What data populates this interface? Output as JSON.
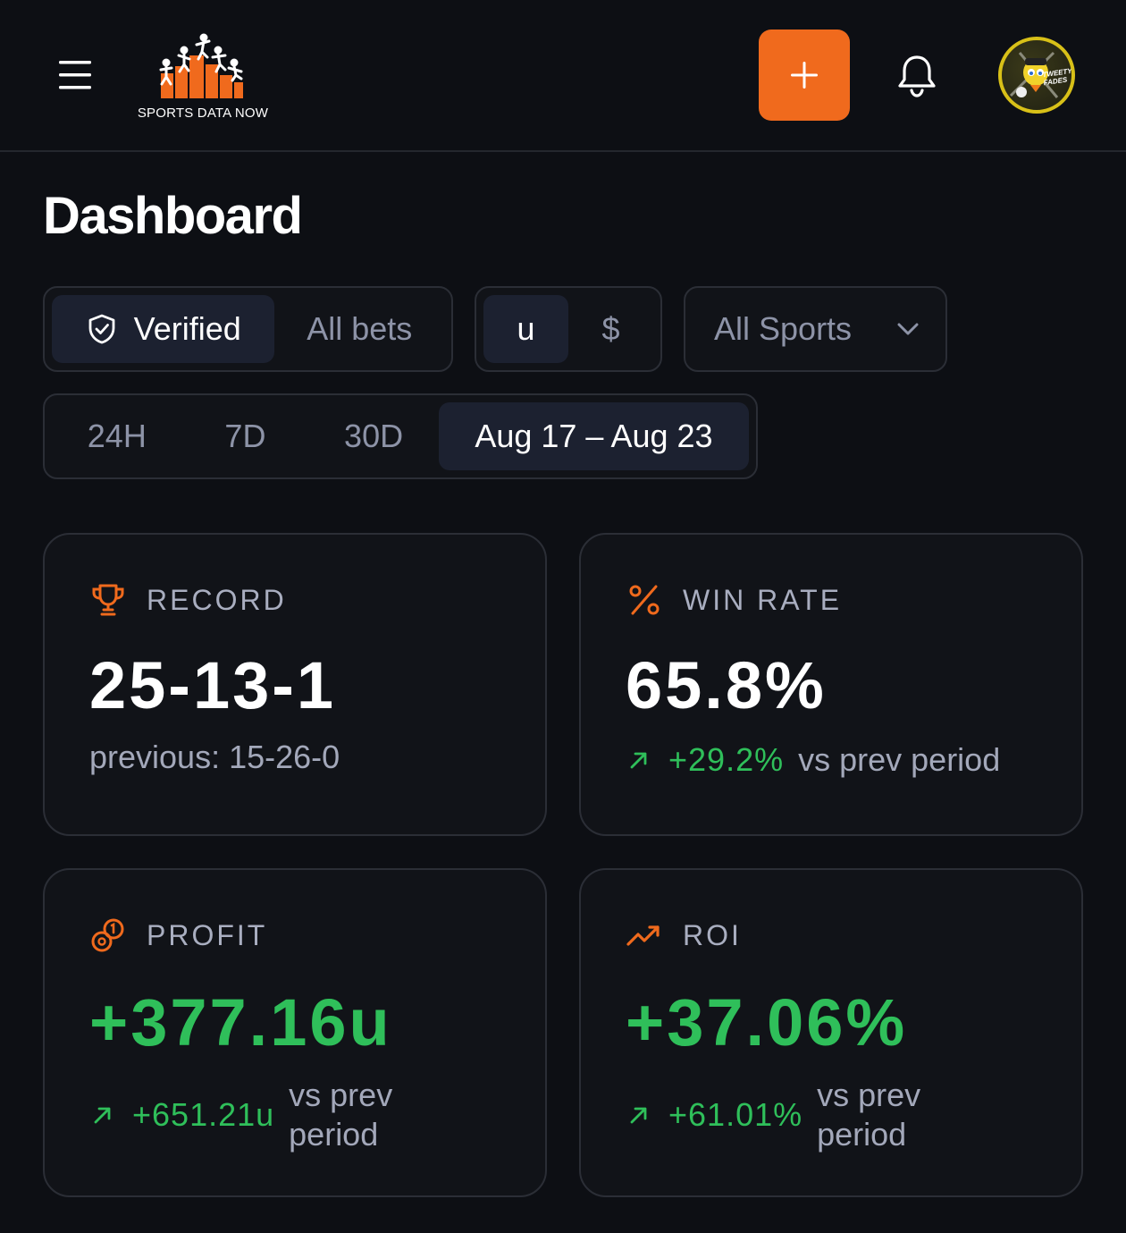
{
  "app": {
    "logo_text": "SPORTS DATA NOW",
    "avatar_text": "TWEETY FADES"
  },
  "icons": {
    "menu": "hamburger-menu-icon",
    "add": "plus-icon",
    "notifications": "bell-icon",
    "verified": "shield-check-icon",
    "dropdown": "chevron-down-icon",
    "record": "trophy-icon",
    "win_rate": "percent-icon",
    "profit": "coins-icon",
    "roi": "trending-up-icon",
    "delta": "arrow-up-right-icon"
  },
  "page": {
    "title": "Dashboard"
  },
  "filters": {
    "bet_filter": {
      "verified": "Verified",
      "all": "All bets",
      "selected": "Verified"
    },
    "unit_filter": {
      "units": "u",
      "dollars": "$",
      "selected": "u"
    },
    "sport_select": {
      "value": "All Sports"
    },
    "period": {
      "options": [
        "24H",
        "7D",
        "30D",
        "Aug 17 – Aug 23"
      ],
      "selected": "Aug 17 – Aug 23"
    }
  },
  "stats": {
    "record": {
      "label": "RECORD",
      "value": "25-13-1",
      "previous": "previous: 15-26-0"
    },
    "win_rate": {
      "label": "WIN RATE",
      "value": "65.8%",
      "delta": "+29.2%",
      "delta_text": "vs prev period"
    },
    "profit": {
      "label": "PROFIT",
      "value": "+377.16u",
      "delta": "+651.21u",
      "delta_text": "vs prev period"
    },
    "roi": {
      "label": "ROI",
      "value": "+37.06%",
      "delta": "+61.01%",
      "delta_text": "vs prev period"
    }
  },
  "colors": {
    "background": "#0d0f14",
    "accent": "#f06a1d",
    "positive": "#2fbf5a",
    "muted_text": "#a3a8ba",
    "border": "#2b2e36"
  }
}
